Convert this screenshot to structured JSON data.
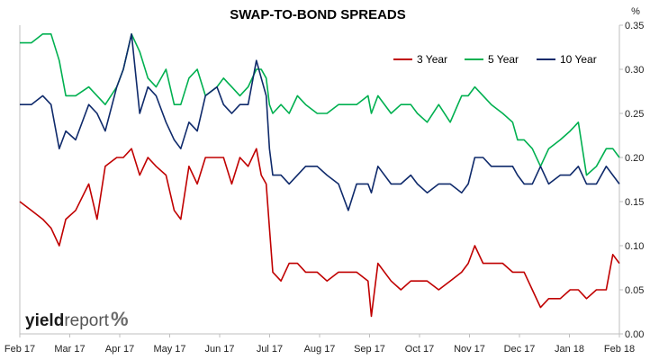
{
  "chart_data": {
    "type": "line",
    "title": "SWAP-TO-BOND SPREADS",
    "ylabel": "%",
    "ylim": [
      0,
      0.35
    ],
    "yticks": [
      "0.00",
      "0.05",
      "0.10",
      "0.15",
      "0.20",
      "0.25",
      "0.30",
      "0.35"
    ],
    "xticks": [
      "Feb 17",
      "Mar 17",
      "Apr 17",
      "May 17",
      "Jun 17",
      "Jul 17",
      "Aug 17",
      "Sep 17",
      "Oct 17",
      "Nov 17",
      "Dec 17",
      "Jan 18",
      "Feb 18"
    ],
    "grid": false,
    "legend_position": "top-right",
    "series": [
      {
        "name": "3 Year",
        "color": "#c00000",
        "x": [
          "2017-02-01",
          "2017-02-08",
          "2017-02-15",
          "2017-02-20",
          "2017-02-25",
          "2017-03-01",
          "2017-03-07",
          "2017-03-15",
          "2017-03-20",
          "2017-03-25",
          "2017-04-01",
          "2017-04-05",
          "2017-04-10",
          "2017-04-15",
          "2017-04-20",
          "2017-04-25",
          "2017-05-01",
          "2017-05-06",
          "2017-05-10",
          "2017-05-15",
          "2017-05-20",
          "2017-05-25",
          "2017-06-01",
          "2017-06-05",
          "2017-06-10",
          "2017-06-15",
          "2017-06-20",
          "2017-06-25",
          "2017-06-28",
          "2017-07-01",
          "2017-07-03",
          "2017-07-05",
          "2017-07-10",
          "2017-07-15",
          "2017-07-20",
          "2017-07-25",
          "2017-08-01",
          "2017-08-07",
          "2017-08-14",
          "2017-08-20",
          "2017-08-25",
          "2017-09-01",
          "2017-09-03",
          "2017-09-07",
          "2017-09-15",
          "2017-09-21",
          "2017-09-27",
          "2017-10-01",
          "2017-10-07",
          "2017-10-14",
          "2017-10-21",
          "2017-10-28",
          "2017-11-01",
          "2017-11-05",
          "2017-11-10",
          "2017-11-15",
          "2017-11-22",
          "2017-11-28",
          "2017-12-01",
          "2017-12-05",
          "2017-12-10",
          "2017-12-15",
          "2017-12-20",
          "2017-12-27",
          "2018-01-02",
          "2018-01-07",
          "2018-01-12",
          "2018-01-18",
          "2018-01-24",
          "2018-01-28",
          "2018-02-01"
        ],
        "values": [
          0.15,
          0.14,
          0.13,
          0.12,
          0.1,
          0.13,
          0.14,
          0.17,
          0.13,
          0.19,
          0.2,
          0.2,
          0.21,
          0.18,
          0.2,
          0.19,
          0.18,
          0.14,
          0.13,
          0.19,
          0.17,
          0.2,
          0.2,
          0.2,
          0.17,
          0.2,
          0.19,
          0.21,
          0.18,
          0.17,
          0.12,
          0.07,
          0.06,
          0.08,
          0.08,
          0.07,
          0.07,
          0.06,
          0.07,
          0.07,
          0.07,
          0.06,
          0.02,
          0.08,
          0.06,
          0.05,
          0.06,
          0.06,
          0.06,
          0.05,
          0.06,
          0.07,
          0.08,
          0.1,
          0.08,
          0.08,
          0.08,
          0.07,
          0.07,
          0.07,
          0.05,
          0.03,
          0.04,
          0.04,
          0.05,
          0.05,
          0.04,
          0.05,
          0.05,
          0.09,
          0.08
        ]
      },
      {
        "name": "5 Year",
        "color": "#00b050",
        "x": [
          "2017-02-01",
          "2017-02-08",
          "2017-02-15",
          "2017-02-20",
          "2017-02-25",
          "2017-03-01",
          "2017-03-07",
          "2017-03-15",
          "2017-03-20",
          "2017-03-25",
          "2017-04-01",
          "2017-04-05",
          "2017-04-10",
          "2017-04-15",
          "2017-04-20",
          "2017-04-25",
          "2017-05-01",
          "2017-05-06",
          "2017-05-10",
          "2017-05-15",
          "2017-05-20",
          "2017-05-25",
          "2017-06-01",
          "2017-06-05",
          "2017-06-10",
          "2017-06-15",
          "2017-06-20",
          "2017-06-25",
          "2017-06-28",
          "2017-07-01",
          "2017-07-03",
          "2017-07-05",
          "2017-07-10",
          "2017-07-15",
          "2017-07-20",
          "2017-07-25",
          "2017-08-01",
          "2017-08-07",
          "2017-08-14",
          "2017-08-20",
          "2017-08-25",
          "2017-09-01",
          "2017-09-03",
          "2017-09-07",
          "2017-09-15",
          "2017-09-21",
          "2017-09-27",
          "2017-10-01",
          "2017-10-07",
          "2017-10-14",
          "2017-10-21",
          "2017-10-28",
          "2017-11-01",
          "2017-11-05",
          "2017-11-10",
          "2017-11-15",
          "2017-11-22",
          "2017-11-28",
          "2017-12-01",
          "2017-12-05",
          "2017-12-10",
          "2017-12-15",
          "2017-12-20",
          "2017-12-27",
          "2018-01-02",
          "2018-01-07",
          "2018-01-12",
          "2018-01-18",
          "2018-01-24",
          "2018-01-28",
          "2018-02-01"
        ],
        "values": [
          0.33,
          0.33,
          0.34,
          0.34,
          0.31,
          0.27,
          0.27,
          0.28,
          0.27,
          0.26,
          0.28,
          0.3,
          0.34,
          0.32,
          0.29,
          0.28,
          0.3,
          0.26,
          0.26,
          0.29,
          0.3,
          0.27,
          0.28,
          0.29,
          0.28,
          0.27,
          0.28,
          0.3,
          0.3,
          0.29,
          0.26,
          0.25,
          0.26,
          0.25,
          0.27,
          0.26,
          0.25,
          0.25,
          0.26,
          0.26,
          0.26,
          0.27,
          0.25,
          0.27,
          0.25,
          0.26,
          0.26,
          0.25,
          0.24,
          0.26,
          0.24,
          0.27,
          0.27,
          0.28,
          0.27,
          0.26,
          0.25,
          0.24,
          0.22,
          0.22,
          0.21,
          0.19,
          0.21,
          0.22,
          0.23,
          0.24,
          0.18,
          0.19,
          0.21,
          0.21,
          0.2
        ]
      },
      {
        "name": "10 Year",
        "color": "#0f2a6b",
        "x": [
          "2017-02-01",
          "2017-02-08",
          "2017-02-15",
          "2017-02-20",
          "2017-02-25",
          "2017-03-01",
          "2017-03-07",
          "2017-03-15",
          "2017-03-20",
          "2017-03-25",
          "2017-04-01",
          "2017-04-05",
          "2017-04-10",
          "2017-04-15",
          "2017-04-20",
          "2017-04-25",
          "2017-05-01",
          "2017-05-06",
          "2017-05-10",
          "2017-05-15",
          "2017-05-20",
          "2017-05-25",
          "2017-06-01",
          "2017-06-05",
          "2017-06-10",
          "2017-06-15",
          "2017-06-20",
          "2017-06-25",
          "2017-06-28",
          "2017-07-01",
          "2017-07-03",
          "2017-07-05",
          "2017-07-10",
          "2017-07-15",
          "2017-07-20",
          "2017-07-25",
          "2017-08-01",
          "2017-08-07",
          "2017-08-14",
          "2017-08-20",
          "2017-08-25",
          "2017-09-01",
          "2017-09-03",
          "2017-09-07",
          "2017-09-15",
          "2017-09-21",
          "2017-09-27",
          "2017-10-01",
          "2017-10-07",
          "2017-10-14",
          "2017-10-21",
          "2017-10-28",
          "2017-11-01",
          "2017-11-05",
          "2017-11-10",
          "2017-11-15",
          "2017-11-22",
          "2017-11-28",
          "2017-12-01",
          "2017-12-05",
          "2017-12-10",
          "2017-12-15",
          "2017-12-20",
          "2017-12-27",
          "2018-01-02",
          "2018-01-07",
          "2018-01-12",
          "2018-01-18",
          "2018-01-24",
          "2018-01-28",
          "2018-02-01"
        ],
        "values": [
          0.26,
          0.26,
          0.27,
          0.26,
          0.21,
          0.23,
          0.22,
          0.26,
          0.25,
          0.23,
          0.28,
          0.3,
          0.34,
          0.25,
          0.28,
          0.27,
          0.24,
          0.22,
          0.21,
          0.24,
          0.23,
          0.27,
          0.28,
          0.26,
          0.25,
          0.26,
          0.26,
          0.31,
          0.29,
          0.27,
          0.21,
          0.18,
          0.18,
          0.17,
          0.18,
          0.19,
          0.19,
          0.18,
          0.17,
          0.14,
          0.17,
          0.17,
          0.16,
          0.19,
          0.17,
          0.17,
          0.18,
          0.17,
          0.16,
          0.17,
          0.17,
          0.16,
          0.17,
          0.2,
          0.2,
          0.19,
          0.19,
          0.19,
          0.18,
          0.17,
          0.17,
          0.19,
          0.17,
          0.18,
          0.18,
          0.19,
          0.17,
          0.17,
          0.19,
          0.18,
          0.17
        ]
      }
    ]
  },
  "logo": {
    "brand_bold": "yield",
    "brand_light": "report",
    "symbol": "%"
  }
}
